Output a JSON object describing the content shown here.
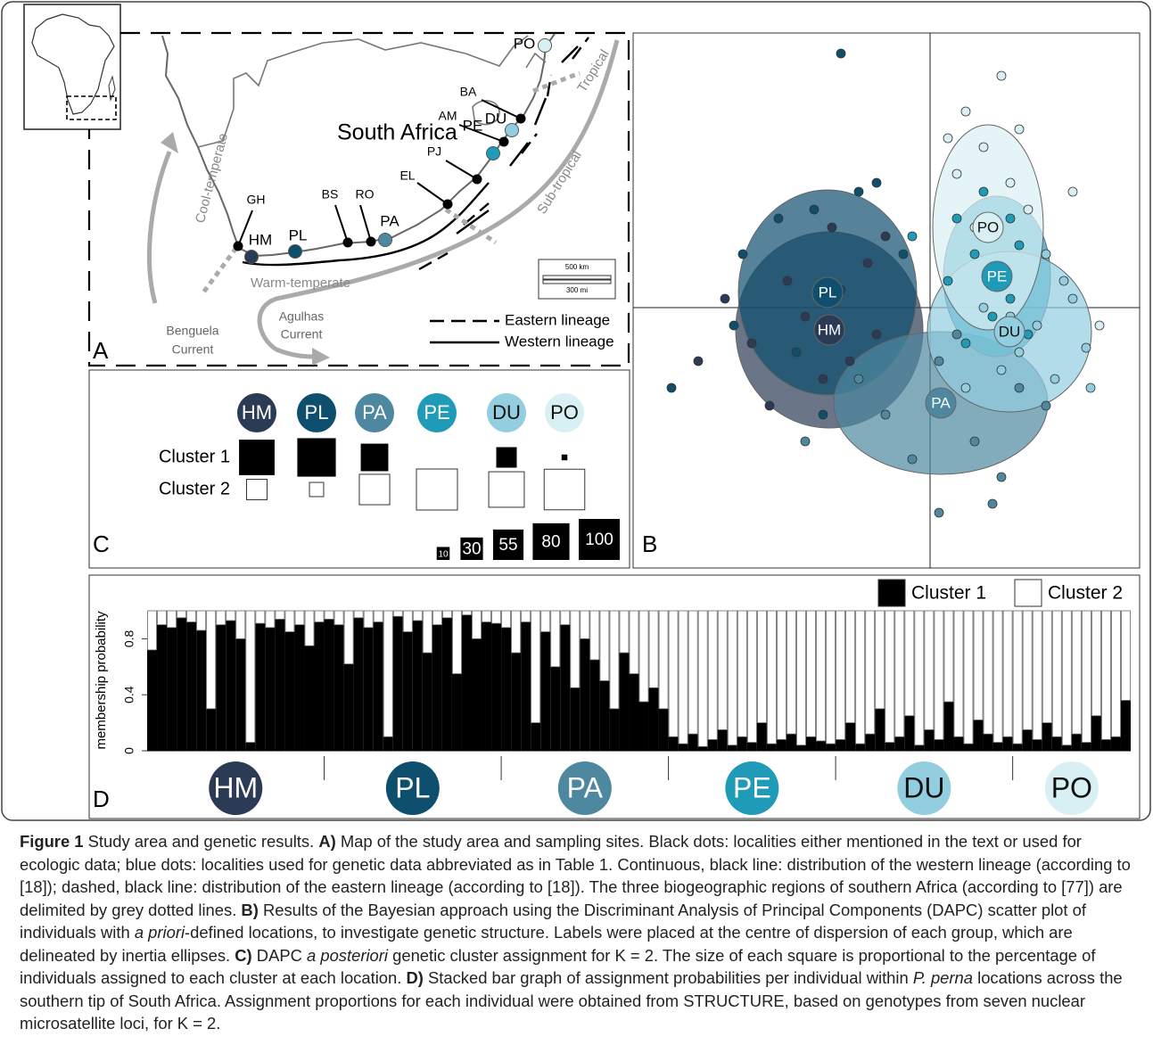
{
  "populations": [
    {
      "label": "HM",
      "color": "#2b3a55"
    },
    {
      "label": "PL",
      "color": "#0e4f6e"
    },
    {
      "label": "PA",
      "color": "#4d87a0"
    },
    {
      "label": "PE",
      "color": "#1f9bb8"
    },
    {
      "label": "DU",
      "color": "#92cde0"
    },
    {
      "label": "PO",
      "color": "#d8f0f4"
    }
  ],
  "panels": {
    "A": {
      "letter": "A",
      "country": "South Africa",
      "other_sites": [
        "GH",
        "BS",
        "RO",
        "EL",
        "PJ",
        "AM",
        "BA"
      ],
      "regions": [
        "Cool-temperate",
        "Warm-temperate",
        "Sub-tropical",
        "Tropical"
      ],
      "currents": [
        [
          "Benguela",
          "Current"
        ],
        [
          "Agulhas",
          "Current"
        ]
      ],
      "legend": [
        "Eastern lineage",
        "Western lineage"
      ],
      "scale": [
        "500 km",
        "300 mi"
      ]
    },
    "B": {
      "letter": "B",
      "type": "scatter",
      "xlim": [
        -3.33,
        2.35
      ],
      "ylim": [
        -2.92,
        3.08
      ],
      "series": [
        {
          "x": [
            -1.6,
            -1.2,
            -0.7,
            -2.0,
            -1.4,
            -0.9,
            -2.6,
            -1.8,
            -0.5,
            -1.1,
            -2.3,
            -0.6
          ],
          "y": [
            0.3,
            -0.8,
            0.5,
            -0.4,
            -0.1,
            -0.6,
            -0.6,
            -1.1,
            0.8,
            0.9,
            0.1,
            -0.3
          ],
          "ellipse": {
            "cx": -1.13,
            "cy": -0.25,
            "rx": 1.05,
            "ry": 1.1
          }
        },
        {
          "x": [
            -1.3,
            -2.1,
            -0.8,
            -1.5,
            -1.0,
            -2.9,
            -1.7,
            -0.3,
            -1.2,
            -2.2,
            -1.0,
            -0.6
          ],
          "y": [
            1.1,
            0.6,
            1.3,
            -0.5,
            0.2,
            -0.9,
            1.0,
            0.6,
            -1.2,
            -0.2,
            2.85,
            1.4
          ],
          "ellipse": {
            "cx": -1.15,
            "cy": 0.17,
            "rx": 1.0,
            "ry": 1.15
          }
        },
        {
          "x": [
            0.1,
            -0.5,
            0.5,
            1.0,
            -0.2,
            0.7,
            0.1,
            -0.8,
            1.3,
            0.3,
            -1.4,
            0.8
          ],
          "y": [
            -0.6,
            -1.2,
            -1.5,
            -0.9,
            -1.7,
            -2.2,
            -2.3,
            -0.8,
            -1.1,
            -0.3,
            -1.5,
            -1.9
          ],
          "ellipse": {
            "cx": 0.12,
            "cy": -1.07,
            "rx": 1.2,
            "ry": 0.8
          }
        },
        {
          "x": [
            0.5,
            0.9,
            0.3,
            0.7,
            1.0,
            0.2,
            0.6,
            1.1,
            0.4,
            0.8,
            -0.2,
            0.9
          ],
          "y": [
            0.6,
            0.1,
            1.0,
            -0.1,
            0.7,
            0.3,
            1.3,
            -0.3,
            -0.4,
            0.4,
            0.8,
            1.0
          ],
          "ellipse": {
            "cx": 0.75,
            "cy": 0.35,
            "rx": 0.6,
            "ry": 0.9
          }
        },
        {
          "x": [
            1.2,
            0.8,
            1.5,
            0.6,
            1.4,
            1.0,
            1.8,
            0.4,
            1.6,
            0.9,
            1.75,
            1.3
          ],
          "y": [
            -0.2,
            -0.7,
            0.3,
            0.0,
            -0.8,
            -0.5,
            -0.9,
            -0.9,
            0.1,
            -0.1,
            -0.45,
            0.6
          ],
          "ellipse": {
            "cx": 0.89,
            "cy": -0.27,
            "rx": 0.92,
            "ry": 0.9
          }
        },
        {
          "x": [
            0.6,
            0.9,
            0.3,
            1.0,
            0.5,
            0.8,
            0.2,
            1.1,
            0.7,
            1.6,
            0.4,
            1.9
          ],
          "y": [
            1.8,
            1.4,
            1.5,
            2.0,
            0.9,
            2.6,
            1.9,
            1.1,
            0.4,
            1.3,
            2.2,
            -0.2
          ],
          "ellipse": {
            "cx": 0.65,
            "cy": 0.9,
            "rx": 0.62,
            "ry": 1.15
          }
        }
      ]
    },
    "C": {
      "letter": "C",
      "rows": [
        "Cluster 1",
        "Cluster 2"
      ],
      "values": [
        [
          75,
          88,
          45,
          0,
          25,
          2
        ],
        [
          25,
          12,
          55,
          100,
          75,
          98
        ]
      ],
      "size_legend": [
        10,
        30,
        55,
        80,
        100
      ]
    },
    "D": {
      "letter": "D",
      "type": "bar",
      "stacked": true,
      "ylabel": "membership probability",
      "ylim": [
        0,
        1
      ],
      "yticks": [
        0,
        0.4,
        0.8
      ],
      "legend": [
        {
          "name": "Cluster 1",
          "color": "#000000"
        },
        {
          "name": "Cluster 2",
          "color": "#ffffff"
        }
      ],
      "cluster1": [
        [
          0.72,
          0.9,
          0.88,
          0.95,
          0.92,
          0.86,
          0.3,
          0.9,
          0.93,
          0.8,
          0.06,
          0.91,
          0.88,
          0.94,
          0.85,
          0.9,
          0.75,
          0.92
        ],
        [
          0.94,
          0.9,
          0.62,
          0.95,
          0.88,
          0.92,
          0.1,
          0.96,
          0.85,
          0.93,
          0.7,
          0.9,
          0.95,
          0.55,
          0.97,
          0.8,
          0.92,
          0.91
        ],
        [
          0.88,
          0.7,
          0.92,
          0.2,
          0.85,
          0.6,
          0.9,
          0.45,
          0.8,
          0.65,
          0.5,
          0.3,
          0.7,
          0.55,
          0.35,
          0.45,
          0.3
        ],
        [
          0.1,
          0.05,
          0.12,
          0.03,
          0.08,
          0.15,
          0.04,
          0.1,
          0.06,
          0.2,
          0.05,
          0.08,
          0.12,
          0.04,
          0.1,
          0.07,
          0.05
        ],
        [
          0.08,
          0.2,
          0.05,
          0.12,
          0.3,
          0.06,
          0.1,
          0.25,
          0.04,
          0.15,
          0.08,
          0.35,
          0.1,
          0.05,
          0.22,
          0.12,
          0.06,
          0.1
        ],
        [
          0.05,
          0.15,
          0.08,
          0.2,
          0.1,
          0.04,
          0.12,
          0.06,
          0.25,
          0.08,
          0.1,
          0.36
        ]
      ],
      "cluster2": [
        [
          0.28,
          0.1,
          0.12,
          0.05,
          0.08,
          0.14,
          0.7,
          0.1,
          0.07,
          0.2,
          0.94,
          0.09,
          0.12,
          0.06,
          0.15,
          0.1,
          0.25,
          0.08
        ],
        [
          0.06,
          0.1,
          0.38,
          0.05,
          0.12,
          0.08,
          0.9,
          0.04,
          0.15,
          0.07,
          0.3,
          0.1,
          0.05,
          0.45,
          0.03,
          0.2,
          0.08,
          0.09
        ],
        [
          0.12,
          0.3,
          0.08,
          0.8,
          0.15,
          0.4,
          0.1,
          0.55,
          0.2,
          0.35,
          0.5,
          0.7,
          0.3,
          0.45,
          0.65,
          0.55,
          0.7
        ],
        [
          0.9,
          0.95,
          0.88,
          0.97,
          0.92,
          0.85,
          0.96,
          0.9,
          0.94,
          0.8,
          0.95,
          0.92,
          0.88,
          0.96,
          0.9,
          0.93,
          0.95
        ],
        [
          0.92,
          0.8,
          0.95,
          0.88,
          0.7,
          0.94,
          0.9,
          0.75,
          0.96,
          0.85,
          0.92,
          0.65,
          0.9,
          0.95,
          0.78,
          0.88,
          0.94,
          0.9
        ],
        [
          0.95,
          0.85,
          0.92,
          0.8,
          0.9,
          0.96,
          0.88,
          0.94,
          0.75,
          0.92,
          0.9,
          0.64
        ]
      ]
    }
  },
  "caption": [
    {
      "text": "Figure 1",
      "bold": true
    },
    {
      "text": " Study area and genetic results. "
    },
    {
      "text": "A)",
      "bold": true
    },
    {
      "text": " Map of the study area and sampling sites. Black dots: localities either mentioned in the text or used for ecologic data; blue dots: localities used for genetic data abbreviated as in Table 1. Continuous, black line: distribution of the western lineage (according to [18]); dashed, black line: distribution of the eastern lineage (according to [18]). The three biogeographic regions of southern Africa (according to [77]) are delimited by grey dotted lines. "
    },
    {
      "text": "B)",
      "bold": true
    },
    {
      "text": " Results of the Bayesian approach using the Discriminant Analysis of Principal Components (DAPC) scatter plot of individuals with "
    },
    {
      "text": "a priori",
      "italic": true
    },
    {
      "text": "-defined locations, to investigate genetic structure. Labels were placed at the centre of dispersion of each group, which are delineated by inertia ellipses. "
    },
    {
      "text": "C)",
      "bold": true
    },
    {
      "text": " DAPC "
    },
    {
      "text": "a posteriori",
      "italic": true
    },
    {
      "text": " genetic cluster assignment for K = 2. The size of each square is proportional to the percentage of individuals assigned to each cluster at each location. "
    },
    {
      "text": "D)",
      "bold": true
    },
    {
      "text": " Stacked bar graph of assignment probabilities per individual within "
    },
    {
      "text": "P. perna",
      "italic": true
    },
    {
      "text": " locations across the southern tip of South Africa. Assignment proportions for each individual were obtained from STRUCTURE, based on genotypes from seven nuclear microsatellite loci, for K = 2."
    }
  ]
}
